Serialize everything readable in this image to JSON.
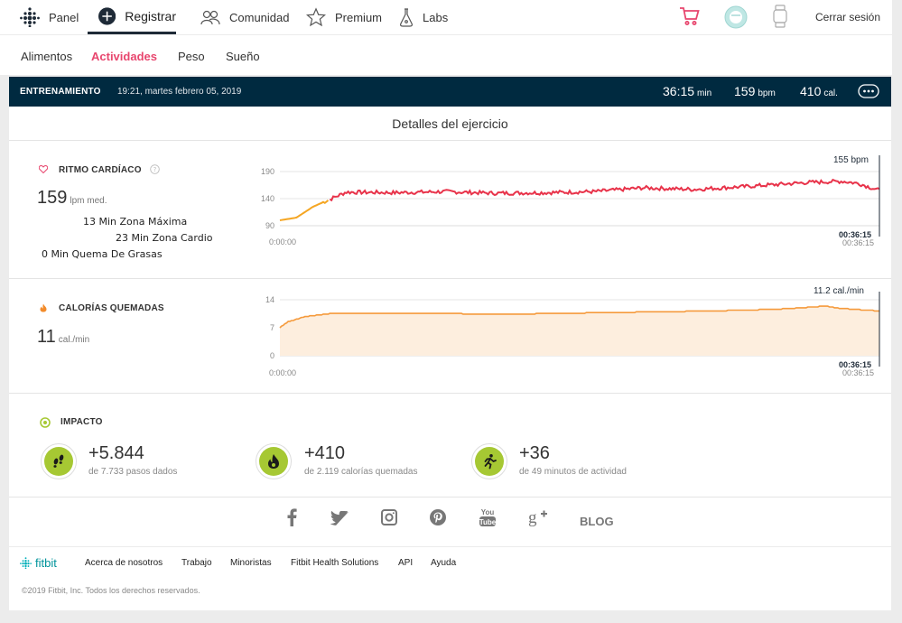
{
  "nav": {
    "panel": "Panel",
    "registrar": "Registrar",
    "comunidad": "Comunidad",
    "premium": "Premium",
    "labs": "Labs",
    "logout": "Cerrar sesión"
  },
  "subnav": [
    "Alimentos",
    "Actividades",
    "Peso",
    "Sueño"
  ],
  "exercise": {
    "label": "ENTRENAMIENTO",
    "datetime": "19:21, martes febrero 05, 2019",
    "duration": "36:15",
    "duration_unit": "min",
    "bpm": "159",
    "bpm_unit": "bpm",
    "cal": "410",
    "cal_unit": "cal."
  },
  "details_title": "Detalles del ejercicio",
  "heart": {
    "title": "RITMO CARDÍACO",
    "value": "159",
    "unit": "lpm med.",
    "zones": [
      "13 Min Zona Máxima",
      "23 Min Zona Cardio",
      "0 Min Quema De Grasas"
    ],
    "current": "155 bpm"
  },
  "calories": {
    "title": "CALORÍAS QUEMADAS",
    "value": "11",
    "unit": "cal./min",
    "current": "11.2 cal./min"
  },
  "time_axis": {
    "start": "0:00:00",
    "end": "00:36:15"
  },
  "impact": {
    "title": "IMPACTO",
    "items": [
      {
        "value": "+5.844",
        "sub": "de 7.733 pasos dados",
        "icon": "footsteps-icon"
      },
      {
        "value": "+410",
        "sub": "de 2.119 calorías quemadas",
        "icon": "flame-icon"
      },
      {
        "value": "+36",
        "sub": "de 49 minutos de actividad",
        "icon": "runner-icon"
      }
    ]
  },
  "social": {
    "blog": "BLOG"
  },
  "footer": {
    "brand": "fitbit",
    "links": [
      "Acerca de nosotros",
      "Trabajo",
      "Minoristas",
      "Fitbit Health Solutions",
      "API",
      "Ayuda"
    ],
    "copyright": "©2019 Fitbit, Inc. Todos los derechos reservados."
  },
  "colors": {
    "accent": "#e8466e",
    "heart_line": "#e8334a",
    "warm_line": "#f5a623",
    "calorie_line": "#f59a3c",
    "bar": "#002a40",
    "impact_green": "#a6c833"
  },
  "chart_data": [
    {
      "type": "line",
      "title": "RITMO CARDÍACO",
      "x": [
        0,
        1,
        2,
        4,
        7,
        10,
        13,
        16,
        19,
        22,
        25,
        28,
        30,
        32,
        34,
        35,
        36.25
      ],
      "x_unit": "min",
      "series": [
        {
          "values": [
            100,
            105,
            125,
            152,
            151,
            153,
            150,
            151,
            153,
            160,
            157,
            162,
            166,
            170,
            172,
            168,
            155
          ]
        }
      ],
      "yticks": [
        90,
        140,
        190
      ],
      "ylim": [
        90,
        195
      ],
      "xticks": [
        "0:00:00",
        "00:36:15"
      ]
    },
    {
      "type": "area",
      "title": "CALORÍAS QUEMADAS",
      "x": [
        0,
        0.5,
        1.5,
        3,
        8,
        14,
        20,
        26,
        30,
        33,
        34,
        36.25
      ],
      "x_unit": "min",
      "series": [
        {
          "values": [
            7,
            8.5,
            9.8,
            10.5,
            10.6,
            10.4,
            10.8,
            11.2,
            11.6,
            12.4,
            11.8,
            11.2
          ]
        }
      ],
      "yticks": [
        0,
        7,
        14
      ],
      "ylim": [
        0,
        14
      ],
      "xticks": [
        "0:00:00",
        "00:36:15"
      ]
    }
  ]
}
